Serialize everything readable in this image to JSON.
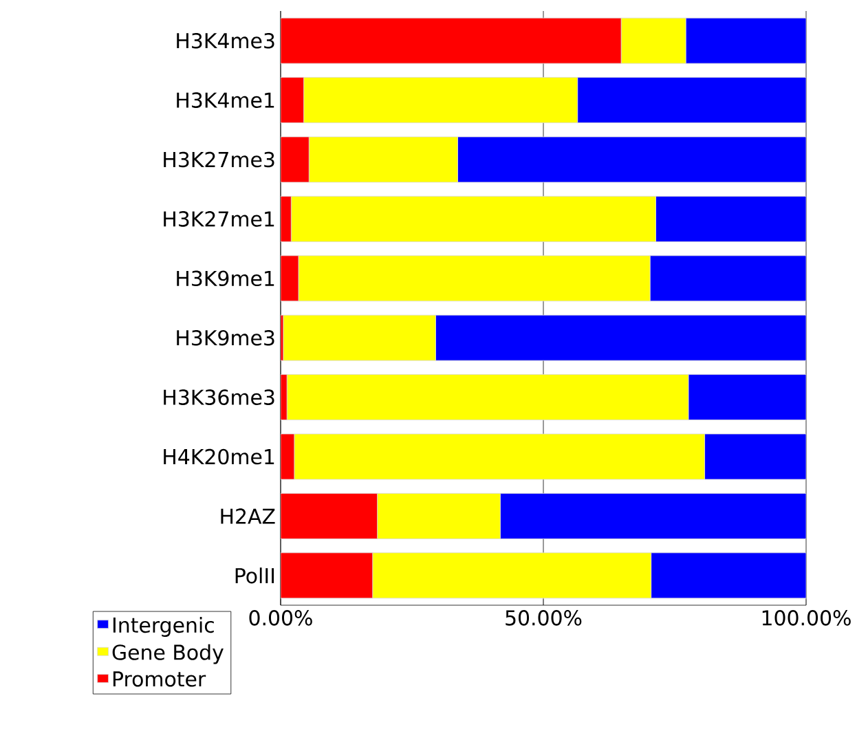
{
  "chart_data": {
    "type": "bar",
    "orientation": "horizontal",
    "stacked": true,
    "categories": [
      "H3K4me3",
      "H3K4me1",
      "H3K27me3",
      "H3K27me1",
      "H3K9me1",
      "H3K9me3",
      "H3K36me3",
      "H4K20me1",
      "H2AZ",
      "PolII"
    ],
    "series": [
      {
        "name": "Promoter",
        "color": "#ff0000",
        "values": [
          64.8,
          4.4,
          5.4,
          2.0,
          3.4,
          0.5,
          1.2,
          2.6,
          18.4,
          17.5
        ]
      },
      {
        "name": "Gene Body",
        "color": "#ffff00",
        "values": [
          12.3,
          52.1,
          28.3,
          69.4,
          66.9,
          29.0,
          76.4,
          78.1,
          23.4,
          53.0
        ]
      },
      {
        "name": "Intergenic",
        "color": "#0000ff",
        "values": [
          22.9,
          43.5,
          66.3,
          28.6,
          29.7,
          70.5,
          22.4,
          19.3,
          58.2,
          29.5
        ]
      }
    ],
    "xlim": [
      0,
      100
    ],
    "xticks": [
      {
        "value": 0,
        "label": "0.00%"
      },
      {
        "value": 50,
        "label": "50.00%"
      },
      {
        "value": 100,
        "label": "100.00%"
      }
    ],
    "grid": "x",
    "legend": "bottom left"
  }
}
